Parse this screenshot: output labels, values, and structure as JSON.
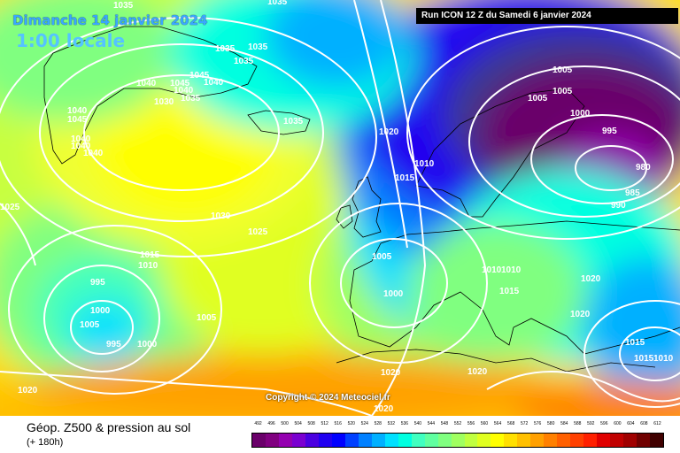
{
  "header": {
    "date": "Dimanche 14 janvier 2024",
    "time": "1:00 locale",
    "run": "Run ICON 12 Z du Samedi 6 janvier 2024"
  },
  "copyright": "Copyright © 2024 Meteociel.fr",
  "footer": {
    "title": "Géop. Z500 & pression au sol",
    "subtitle": "(+ 180h)"
  },
  "legend": {
    "values": [
      "492",
      "496",
      "500",
      "504",
      "508",
      "512",
      "516",
      "520",
      "524",
      "528",
      "532",
      "536",
      "540",
      "544",
      "548",
      "552",
      "556",
      "560",
      "564",
      "568",
      "572",
      "576",
      "580",
      "584",
      "588",
      "592",
      "596",
      "600",
      "604",
      "608",
      "612"
    ],
    "colors": [
      "#6a006a",
      "#800080",
      "#9400b0",
      "#7a00d0",
      "#4a00e0",
      "#2000f0",
      "#0000ff",
      "#0040ff",
      "#0080ff",
      "#00b0ff",
      "#00e0ff",
      "#00ffe0",
      "#40ffc0",
      "#60ffa0",
      "#80ff80",
      "#a0ff60",
      "#c0ff40",
      "#e0ff20",
      "#ffff00",
      "#ffe000",
      "#ffc000",
      "#ffa000",
      "#ff8000",
      "#ff6000",
      "#ff4000",
      "#ff2000",
      "#e00000",
      "#c00000",
      "#a00000",
      "#700000",
      "#400000"
    ]
  },
  "isobar_labels": [
    {
      "text": "1035"
    },
    {
      "text": "1035"
    },
    {
      "text": "1035"
    },
    {
      "text": "1035"
    },
    {
      "text": "1045"
    },
    {
      "text": "1040"
    },
    {
      "text": "1045"
    },
    {
      "text": "1040"
    },
    {
      "text": "1035"
    },
    {
      "text": "1040"
    },
    {
      "text": "1030"
    },
    {
      "text": "1035"
    },
    {
      "text": "1040"
    },
    {
      "text": "1035"
    },
    {
      "text": "1040"
    },
    {
      "text": "1040"
    },
    {
      "text": "1045"
    },
    {
      "text": "1040"
    },
    {
      "text": "1020"
    },
    {
      "text": "1010"
    },
    {
      "text": "1015"
    },
    {
      "text": "1030"
    },
    {
      "text": "1025"
    },
    {
      "text": "1025"
    },
    {
      "text": "1015"
    },
    {
      "text": "1010"
    },
    {
      "text": "995"
    },
    {
      "text": "1000"
    },
    {
      "text": "1005"
    },
    {
      "text": "995"
    },
    {
      "text": "1000"
    },
    {
      "text": "1005"
    },
    {
      "text": "1020"
    },
    {
      "text": "1005"
    },
    {
      "text": "1000"
    },
    {
      "text": "1010"
    },
    {
      "text": "1010"
    },
    {
      "text": "1015"
    },
    {
      "text": "1020"
    },
    {
      "text": "1020"
    },
    {
      "text": "1020"
    },
    {
      "text": "1020"
    },
    {
      "text": "1015"
    },
    {
      "text": "1015"
    },
    {
      "text": "1010"
    },
    {
      "text": "1005"
    },
    {
      "text": "1005"
    },
    {
      "text": "1000"
    },
    {
      "text": "995"
    },
    {
      "text": "980"
    },
    {
      "text": "985"
    },
    {
      "text": "990"
    },
    {
      "text": "1005"
    },
    {
      "text": "1020"
    }
  ]
}
